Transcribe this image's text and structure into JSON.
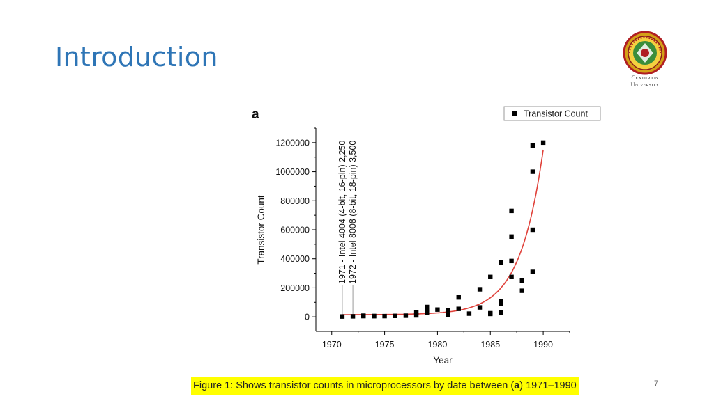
{
  "slide": {
    "title": "Introduction",
    "logo_text_line1": "Centurion",
    "logo_text_line2": "University",
    "caption_before": "Figure 1: Shows transistor counts in microprocessors by date between (",
    "caption_bold": "a",
    "caption_after": ") 1971–1990",
    "page_number": "7"
  },
  "colors": {
    "title": "#2e75b6",
    "caption_highlight": "#ffff00",
    "fit_curve": "#e0413a",
    "marker": "#000000",
    "guide_line": "#9a9a9a"
  },
  "chart_data": {
    "type": "scatter",
    "panel_label": "a",
    "xlabel": "Year",
    "ylabel": "Transistor Count",
    "xlim": [
      1968.5,
      1992.5
    ],
    "ylim": [
      -100000,
      1300000
    ],
    "xticks": [
      1970,
      1975,
      1980,
      1985,
      1990
    ],
    "yticks": [
      0,
      200000,
      400000,
      600000,
      800000,
      1000000,
      1200000
    ],
    "grid": false,
    "legend_position": "top-right",
    "series": [
      {
        "name": "Transistor Count",
        "marker": "square",
        "points": [
          {
            "x": 1971,
            "y": 2250
          },
          {
            "x": 1972,
            "y": 3500
          },
          {
            "x": 1973,
            "y": 5000
          },
          {
            "x": 1973,
            "y": 8000
          },
          {
            "x": 1974,
            "y": 4500
          },
          {
            "x": 1974,
            "y": 6000
          },
          {
            "x": 1975,
            "y": 5000
          },
          {
            "x": 1976,
            "y": 6500
          },
          {
            "x": 1977,
            "y": 8000
          },
          {
            "x": 1978,
            "y": 29000
          },
          {
            "x": 1978,
            "y": 10000
          },
          {
            "x": 1979,
            "y": 68000
          },
          {
            "x": 1979,
            "y": 40000
          },
          {
            "x": 1979,
            "y": 29000
          },
          {
            "x": 1980,
            "y": 50000
          },
          {
            "x": 1981,
            "y": 45000
          },
          {
            "x": 1981,
            "y": 15000
          },
          {
            "x": 1982,
            "y": 134000
          },
          {
            "x": 1982,
            "y": 55000
          },
          {
            "x": 1983,
            "y": 22000
          },
          {
            "x": 1984,
            "y": 190000
          },
          {
            "x": 1984,
            "y": 65000
          },
          {
            "x": 1985,
            "y": 275000
          },
          {
            "x": 1985,
            "y": 25000
          },
          {
            "x": 1985,
            "y": 20000
          },
          {
            "x": 1986,
            "y": 375000
          },
          {
            "x": 1986,
            "y": 110000
          },
          {
            "x": 1986,
            "y": 90000
          },
          {
            "x": 1986,
            "y": 30000
          },
          {
            "x": 1987,
            "y": 730000
          },
          {
            "x": 1987,
            "y": 553000
          },
          {
            "x": 1987,
            "y": 385000
          },
          {
            "x": 1987,
            "y": 275000
          },
          {
            "x": 1988,
            "y": 250000
          },
          {
            "x": 1988,
            "y": 180000
          },
          {
            "x": 1989,
            "y": 1180000
          },
          {
            "x": 1989,
            "y": 1000000
          },
          {
            "x": 1989,
            "y": 600000
          },
          {
            "x": 1989,
            "y": 310000
          },
          {
            "x": 1990,
            "y": 1200000
          }
        ]
      }
    ],
    "fit": {
      "type": "exponential",
      "x_range": [
        1971,
        1990
      ],
      "offset": 15000,
      "amplitude_at_1971": 200,
      "growth_rate": 0.455
    },
    "annotations": [
      {
        "x": 1971,
        "text": "1971 - Intel 4004 (4-bit, 16-pin) 2,250"
      },
      {
        "x": 1972,
        "text": "1972 - Intel 8008 (8-bit, 18-pin) 3,500"
      }
    ]
  }
}
